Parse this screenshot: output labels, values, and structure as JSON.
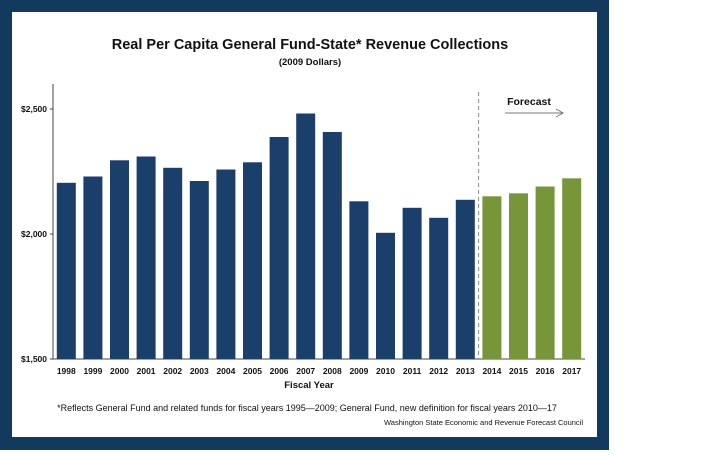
{
  "chart_data": {
    "type": "bar",
    "title": "Real Per Capita General Fund-State* Revenue Collections",
    "subtitle": "(2009 Dollars)",
    "xlabel": "Fiscal Year",
    "ylabel": "",
    "ylim": [
      1500,
      2600
    ],
    "yticks": [
      "$1,500",
      "$2,000",
      "$2,500"
    ],
    "ytick_values": [
      1500,
      2000,
      2500
    ],
    "grid": false,
    "categories": [
      "1998",
      "1999",
      "2000",
      "2001",
      "2002",
      "2003",
      "2004",
      "2005",
      "2006",
      "2007",
      "2008",
      "2009",
      "2010",
      "2011",
      "2012",
      "2013",
      "2014",
      "2015",
      "2016",
      "2017"
    ],
    "values": [
      2205,
      2230,
      2295,
      2310,
      2265,
      2212,
      2258,
      2287,
      2388,
      2482,
      2408,
      2131,
      2005,
      2105,
      2065,
      2137,
      2151,
      2163,
      2190,
      2223
    ],
    "forecast_start": "2014",
    "annotation": "Forecast",
    "colors": {
      "actual": "#1b3f6b",
      "forecast": "#77963a",
      "frame": "#123a5e"
    },
    "footnote": "*Reflects General Fund and related funds for fiscal years 1995—2009; General Fund, new definition for  fiscal years 2010—17",
    "source": "Washington State Economic and  Revenue Forecast Council"
  }
}
